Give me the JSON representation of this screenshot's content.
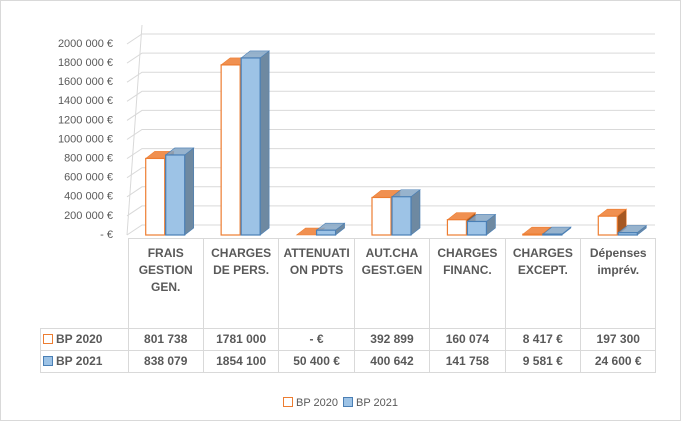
{
  "chart_data": {
    "type": "bar3d",
    "categories": [
      "FRAIS GESTION GEN.",
      "CHARGES DE PERS.",
      "ATTENUATION PDTS",
      "AUT.CHA GEST.GEN",
      "CHARGES FINANC.",
      "CHARGES EXCEPT.",
      "Dépenses imprév."
    ],
    "series": [
      {
        "name": "BP 2020",
        "color": "#ed7d31",
        "fill": "#ffffff",
        "values": [
          801738,
          1781000,
          0,
          392899,
          160074,
          8417,
          197300
        ],
        "value_labels": [
          "801 738",
          "1781 000",
          "- €",
          "392 899",
          "160 074",
          "8 417 €",
          "197 300"
        ]
      },
      {
        "name": "BP 2021",
        "color": "#4a7fb5",
        "fill": "#9dc3e6",
        "values": [
          838079,
          1854100,
          50400,
          400642,
          141758,
          9581,
          24600
        ],
        "value_labels": [
          "838 079",
          "1854 100",
          "50 400 €",
          "400 642",
          "141 758",
          "9 581 €",
          "24 600 €"
        ]
      }
    ],
    "ylim": [
      0,
      2000000
    ],
    "yticks": [
      {
        "value": 0,
        "label": "- €"
      },
      {
        "value": 200000,
        "label": "200 000 €"
      },
      {
        "value": 400000,
        "label": "400 000 €"
      },
      {
        "value": 600000,
        "label": "600 000 €"
      },
      {
        "value": 800000,
        "label": "800 000 €"
      },
      {
        "value": 1000000,
        "label": "1000 000 €"
      },
      {
        "value": 1200000,
        "label": "1200 000 €"
      },
      {
        "value": 1400000,
        "label": "1400 000 €"
      },
      {
        "value": 1600000,
        "label": "1600 000 €"
      },
      {
        "value": 1800000,
        "label": "1800 000 €"
      },
      {
        "value": 2000000,
        "label": "2000 000 €"
      }
    ],
    "grid": true,
    "legend": "bottom"
  }
}
